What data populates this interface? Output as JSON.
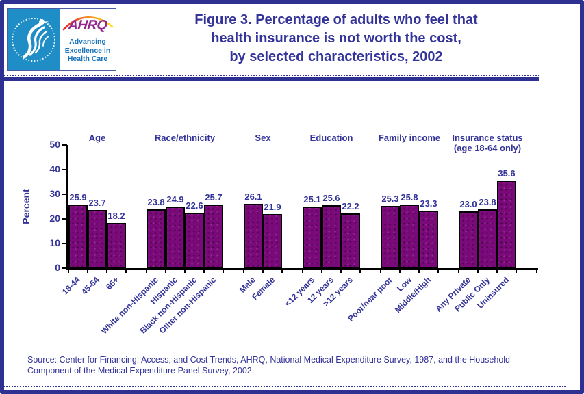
{
  "header": {
    "title": "Figure 3. Percentage of adults who feel that\nhealth insurance is not worth the cost,\nby selected characteristics, 2002",
    "logo": {
      "hhs_name": "Department of Health & Human Services USA seal",
      "ahrq": "AHRQ",
      "tagline": "Advancing\nExcellence in\nHealth Care"
    }
  },
  "colors": {
    "accent_navy": "#333399",
    "frame_blue": "#2E3192",
    "bar_purple": "#7A0A7A",
    "hhs_blue": "#1F8DC6",
    "ahrq_purple": "#92278F",
    "tagline_blue": "#1B75BC"
  },
  "chart_data": {
    "type": "bar",
    "title": "Percentage of adults who feel that health insurance is not worth the cost, by selected characteristics, 2002",
    "xlabel": "",
    "ylabel": "Percent",
    "ylim": [
      0,
      50
    ],
    "yticks": [
      0,
      10,
      20,
      30,
      40,
      50
    ],
    "grid": false,
    "legend": false,
    "bar_color": "#7A0A7A",
    "groups": [
      {
        "label": "Age",
        "categories": [
          "18-44",
          "45-64",
          "65+"
        ],
        "values": [
          25.9,
          23.7,
          18.2
        ],
        "labels": [
          "25.9",
          "23.7",
          "18.2"
        ]
      },
      {
        "label": "Race/ethnicity",
        "categories": [
          "White non-Hispanic",
          "Hispanic",
          "Black non-Hispanic",
          "Other non-Hispanic"
        ],
        "values": [
          23.8,
          24.9,
          22.6,
          25.7
        ],
        "labels": [
          "23.8",
          "24.9",
          "22.6",
          "25.7"
        ]
      },
      {
        "label": "Sex",
        "categories": [
          "Male",
          "Female"
        ],
        "values": [
          26.1,
          21.9
        ],
        "labels": [
          "26.1",
          "21.9"
        ]
      },
      {
        "label": "Education",
        "categories": [
          "<12 years",
          "12 years",
          ">12 years"
        ],
        "values": [
          25.1,
          25.6,
          22.2
        ],
        "labels": [
          "25.1",
          "25.6",
          "22.2"
        ]
      },
      {
        "label": "Family income",
        "categories": [
          "Poor/near poor",
          "Low",
          "Middle/High"
        ],
        "values": [
          25.3,
          25.8,
          23.3
        ],
        "labels": [
          "25.3",
          "25.8",
          "23.3"
        ]
      },
      {
        "label": "Insurance status\n(age 18-64 only)",
        "categories": [
          "Any Private",
          "Public Only",
          "Uninsured"
        ],
        "values": [
          23.0,
          23.8,
          35.6
        ],
        "labels": [
          "23.0",
          "23.8",
          "35.6"
        ]
      }
    ]
  },
  "footer": {
    "source": "Source: Center for Financing, Access, and Cost Trends, AHRQ, National Medical Expenditure Survey, 1987, and the Household\nComponent of the Medical Expenditure Panel Survey, 2002."
  }
}
